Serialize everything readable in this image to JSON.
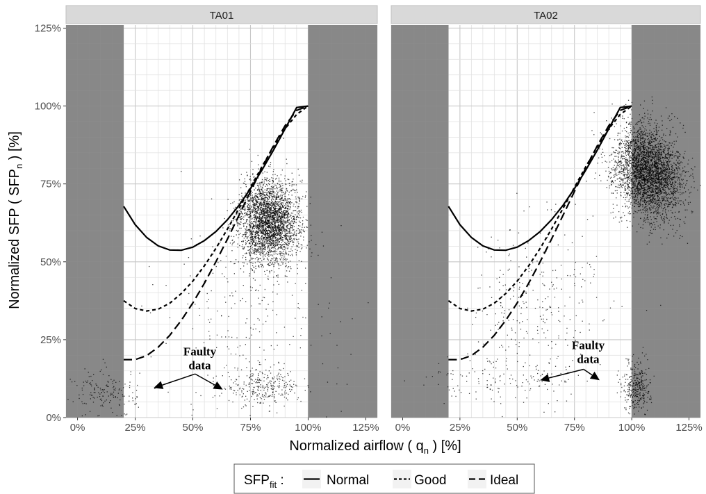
{
  "chart_data": {
    "type": "scatter",
    "facet_labels": [
      "TA01",
      "TA02"
    ],
    "xlabel": {
      "main": "Normalized airflow ( q",
      "sub": "n",
      "tail": " ) [%]"
    },
    "ylabel": {
      "main": "Normalized SFP ( SFP",
      "sub": "n",
      "tail": " ) [%]"
    },
    "xlim": [
      -5,
      130
    ],
    "ylim": [
      0,
      126
    ],
    "x_ticks": [
      0,
      25,
      50,
      75,
      100,
      125
    ],
    "y_ticks": [
      0,
      25,
      50,
      75,
      100,
      125
    ],
    "x_tick_labels": [
      "0%",
      "25%",
      "50%",
      "75%",
      "100%",
      "125%"
    ],
    "y_tick_labels": [
      "0%",
      "25%",
      "50%",
      "75%",
      "100%",
      "125%"
    ],
    "grid": true,
    "shaded_regions": [
      {
        "x_from": -5,
        "x_to": 20
      },
      {
        "x_from": 100,
        "x_to": 130
      }
    ],
    "fit_x": [
      20,
      25,
      30,
      35,
      40,
      45,
      50,
      55,
      60,
      65,
      70,
      75,
      80,
      85,
      90,
      95,
      100
    ],
    "series": [
      {
        "name": "Normal",
        "line": "solid",
        "values": [
          67.8,
          61.9,
          57.8,
          55.1,
          53.8,
          53.7,
          54.7,
          56.8,
          59.7,
          63.5,
          68.1,
          73.5,
          79.5,
          85.9,
          92.7,
          99.5,
          100
        ]
      },
      {
        "name": "Good",
        "line": "dotted",
        "values": [
          37.5,
          35.0,
          34.2,
          34.8,
          36.7,
          39.8,
          43.8,
          48.7,
          54.3,
          60.5,
          67.1,
          73.9,
          80.6,
          87.0,
          92.7,
          97.3,
          100
        ]
      },
      {
        "name": "Ideal",
        "line": "dashed",
        "values": [
          18.6,
          18.6,
          19.9,
          22.6,
          26.4,
          31.2,
          36.8,
          43.1,
          50.0,
          57.3,
          64.9,
          72.6,
          80.2,
          87.3,
          93.7,
          98.6,
          100
        ]
      }
    ],
    "clusters": [
      {
        "panel": 0,
        "cx": 83,
        "cy": 63,
        "sx": 6.5,
        "sy": 6.5,
        "rot": 0.8,
        "n": 3000
      },
      {
        "panel": 0,
        "cx": 80,
        "cy": 10,
        "sx": 8,
        "sy": 3,
        "rot": 0,
        "n": 280
      },
      {
        "panel": 0,
        "cx": 75,
        "cy": 35,
        "sx": 18,
        "sy": 20,
        "rot": 0.5,
        "n": 260
      },
      {
        "panel": 0,
        "cx": 12,
        "cy": 8,
        "sx": 7,
        "sy": 4,
        "rot": 0,
        "n": 160
      },
      {
        "panel": 1,
        "cx": 107,
        "cy": 79,
        "sx": 6.5,
        "sy": 8,
        "rot": 0.8,
        "n": 3300
      },
      {
        "panel": 1,
        "cx": 102,
        "cy": 10,
        "sx": 3,
        "sy": 4,
        "rot": 0,
        "n": 320
      },
      {
        "panel": 1,
        "cx": 60,
        "cy": 38,
        "sx": 16,
        "sy": 14,
        "rot": 0.7,
        "n": 280
      },
      {
        "panel": 1,
        "cx": 45,
        "cy": 12,
        "sx": 20,
        "sy": 4,
        "rot": 0,
        "n": 140
      }
    ],
    "annotations": [
      {
        "panel": 0,
        "text_lines": [
          "Faulty",
          "data"
        ],
        "x": 53,
        "y": 20,
        "arrows": [
          {
            "from": [
              51,
              14
            ],
            "to": [
              33,
              9.5
            ]
          },
          {
            "from": [
              51,
              14
            ],
            "to": [
              63,
              9
            ]
          }
        ]
      },
      {
        "panel": 1,
        "text_lines": [
          "Faulty",
          "data"
        ],
        "x": 81,
        "y": 22,
        "arrows": [
          {
            "from": [
              79,
              15.5
            ],
            "to": [
              60,
              12
            ]
          },
          {
            "from": [
              79,
              15.5
            ],
            "to": [
              86,
              12
            ]
          }
        ]
      }
    ],
    "legend": {
      "title_main": "SFP",
      "title_sub": "fit",
      "title_tail": " :",
      "position": "bottom"
    }
  }
}
